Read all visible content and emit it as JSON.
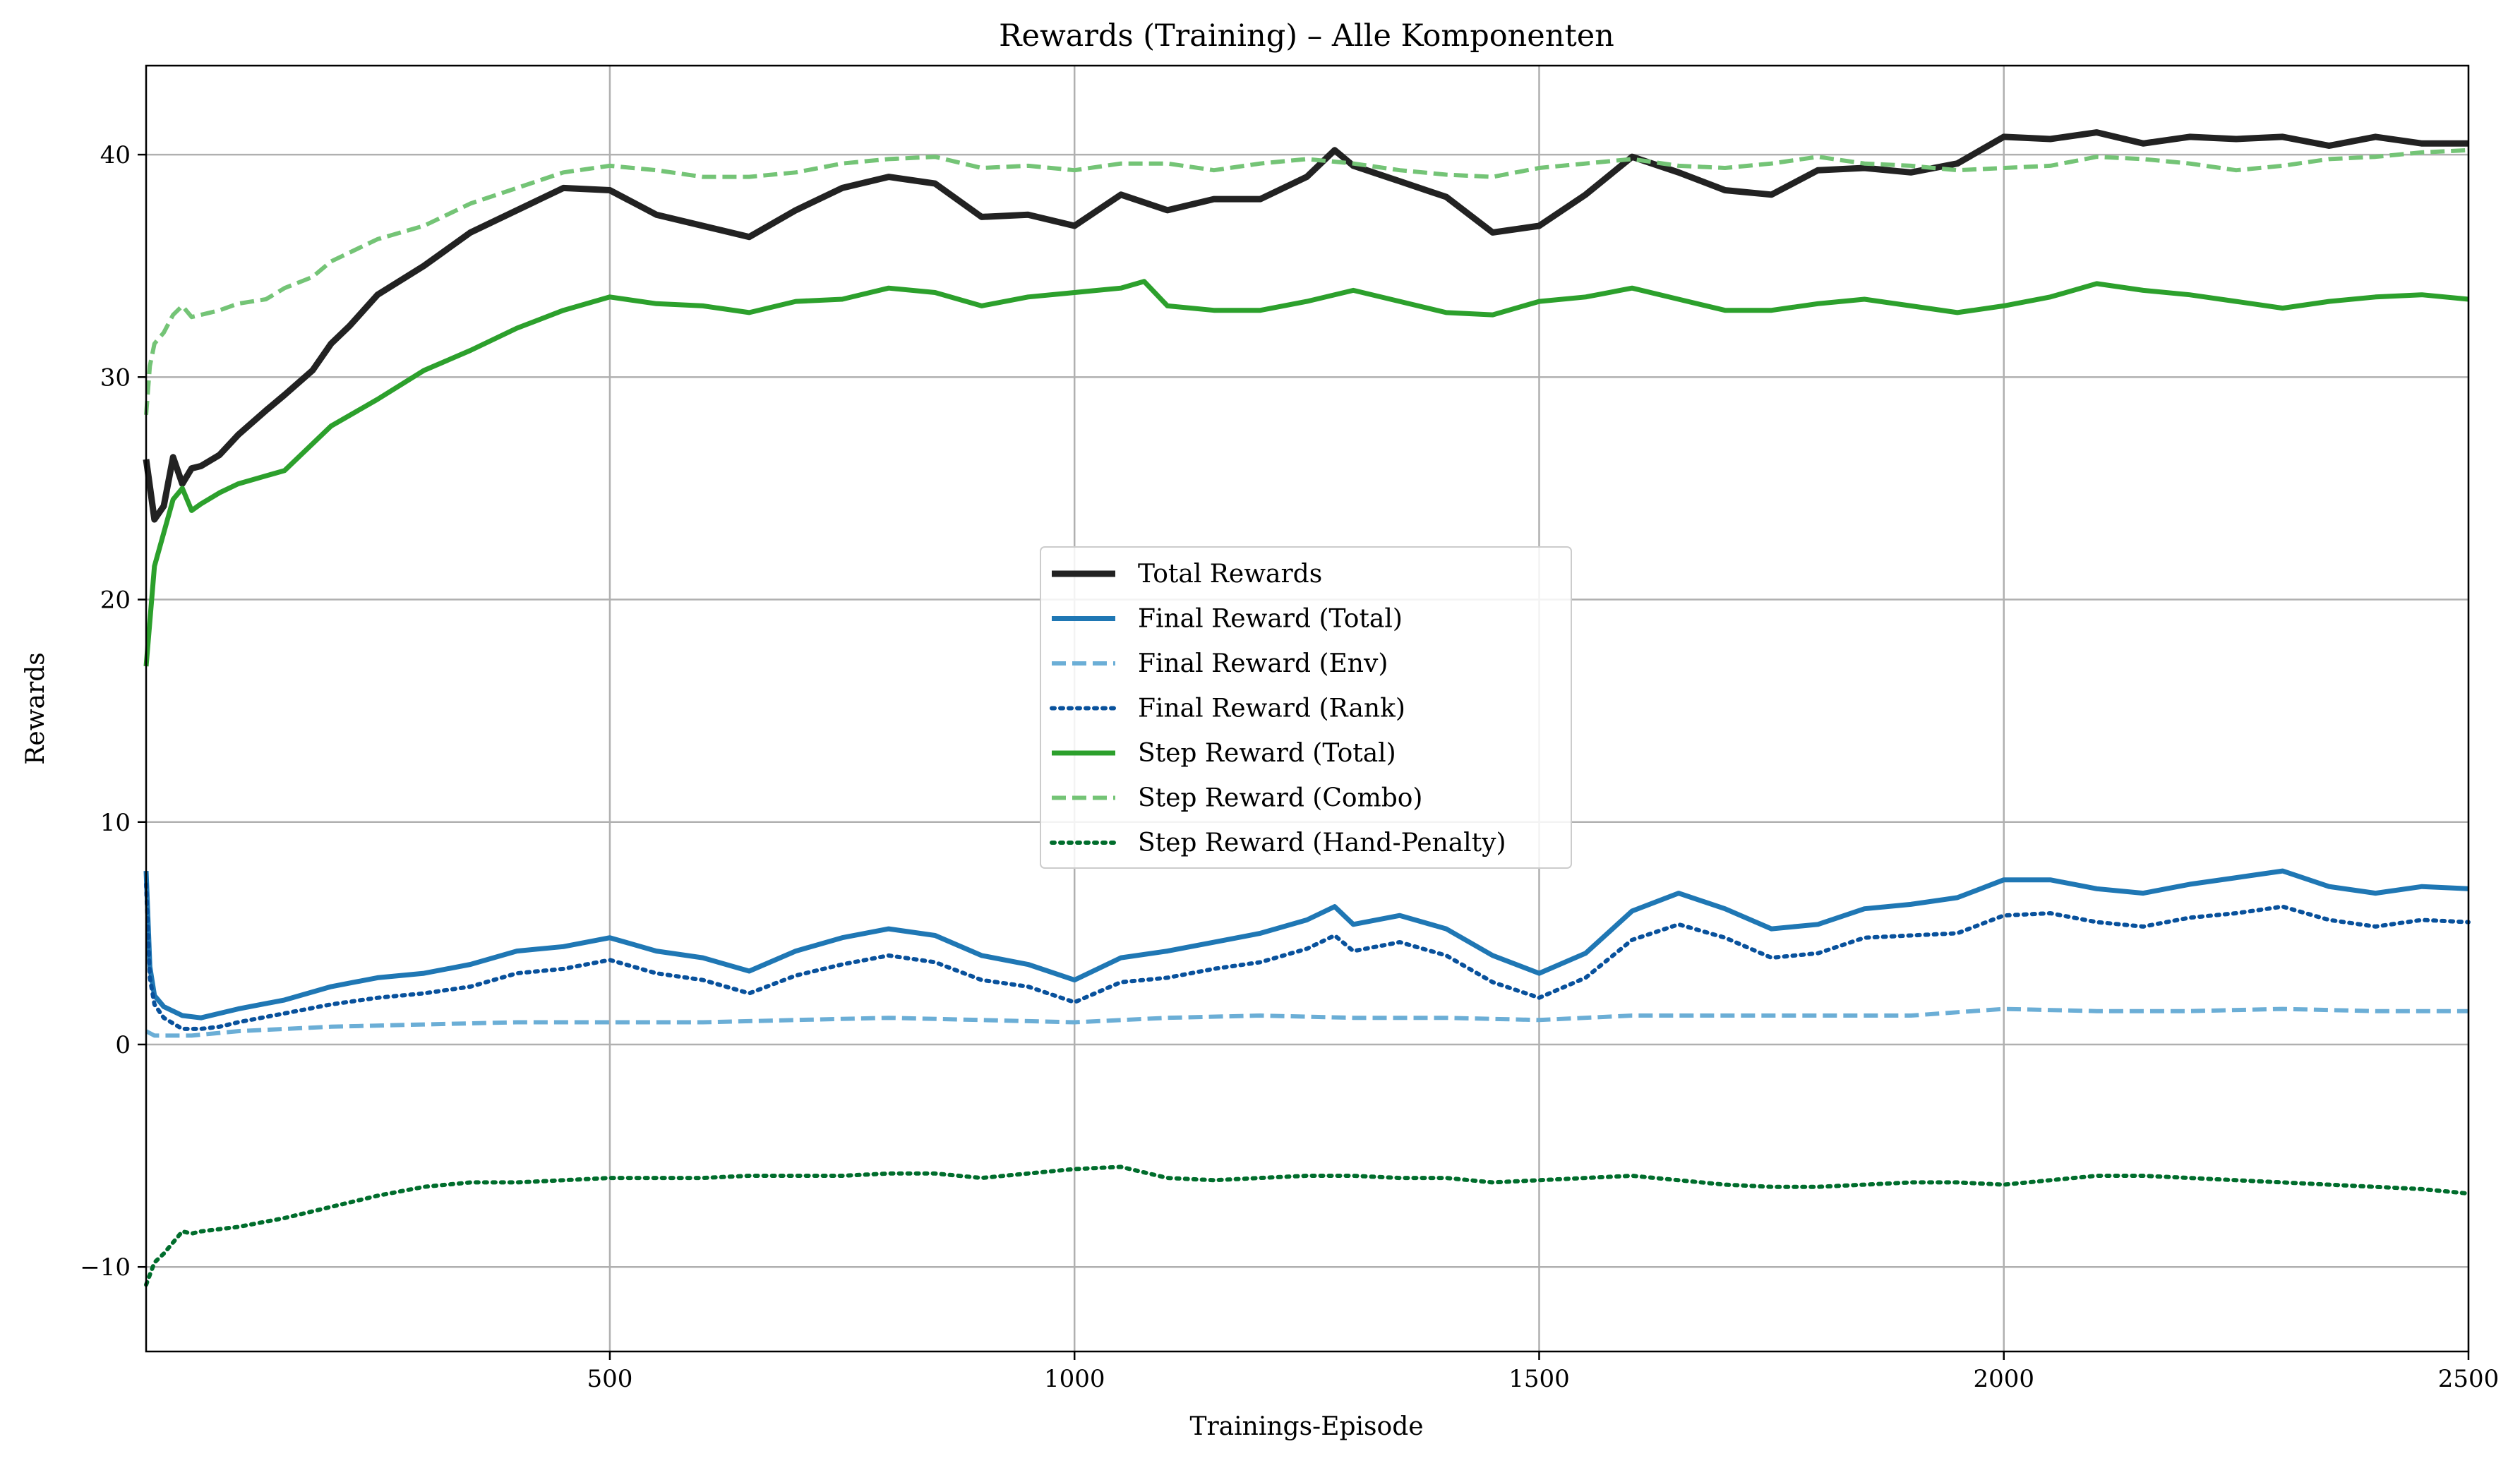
{
  "chart_data": {
    "type": "line",
    "title": "Rewards (Training) – Alle Komponenten",
    "xlabel": "Trainings-Episode",
    "ylabel": "Rewards",
    "xlim": [
      1,
      2500
    ],
    "ylim": [
      -13.8,
      44
    ],
    "grid": true,
    "legend_position": "center",
    "x_ticks": [
      {
        "value": 500,
        "label": "500"
      },
      {
        "value": 1000,
        "label": "1000"
      },
      {
        "value": 1500,
        "label": "1500"
      },
      {
        "value": 2000,
        "label": "2000"
      },
      {
        "value": 2500,
        "label": "2500"
      }
    ],
    "y_ticks": [
      {
        "value": -10,
        "label": "−10"
      },
      {
        "value": 0,
        "label": "0"
      },
      {
        "value": 10,
        "label": "10"
      },
      {
        "value": 20,
        "label": "20"
      },
      {
        "value": 30,
        "label": "30"
      },
      {
        "value": 40,
        "label": "40"
      }
    ],
    "series": [
      {
        "name": "Total Rewards",
        "color": "#222222",
        "style": "solid",
        "x": [
          1,
          10,
          20,
          30,
          40,
          50,
          60,
          80,
          100,
          130,
          150,
          180,
          200,
          220,
          250,
          300,
          350,
          400,
          450,
          500,
          550,
          600,
          650,
          700,
          750,
          800,
          850,
          900,
          950,
          1000,
          1050,
          1100,
          1150,
          1200,
          1250,
          1280,
          1300,
          1350,
          1400,
          1450,
          1500,
          1550,
          1600,
          1650,
          1700,
          1750,
          1800,
          1850,
          1900,
          1950,
          2000,
          2050,
          2100,
          2150,
          2200,
          2250,
          2300,
          2350,
          2400,
          2450,
          2500
        ],
        "values": [
          26.3,
          23.6,
          24.2,
          26.4,
          25.2,
          25.9,
          26.0,
          26.5,
          27.4,
          28.5,
          29.2,
          30.3,
          31.5,
          32.3,
          33.7,
          35.0,
          36.5,
          37.5,
          38.5,
          38.4,
          37.3,
          36.8,
          36.3,
          37.5,
          38.5,
          39.0,
          38.7,
          37.2,
          37.3,
          36.8,
          38.2,
          37.5,
          38.0,
          38.0,
          39.0,
          40.2,
          39.5,
          38.8,
          38.1,
          36.5,
          36.8,
          38.2,
          39.9,
          39.2,
          38.4,
          38.2,
          39.3,
          39.4,
          39.2,
          39.6,
          40.8,
          40.7,
          41.0,
          40.5,
          40.8,
          40.7,
          40.8,
          40.4,
          40.8,
          40.5,
          40.5
        ]
      },
      {
        "name": "Final Reward (Total)",
        "color": "#1f77b4",
        "style": "solid",
        "x": [
          1,
          5,
          10,
          20,
          40,
          60,
          80,
          100,
          150,
          200,
          250,
          300,
          350,
          400,
          450,
          500,
          550,
          600,
          650,
          700,
          750,
          800,
          850,
          900,
          950,
          1000,
          1050,
          1100,
          1150,
          1200,
          1250,
          1280,
          1300,
          1350,
          1400,
          1450,
          1500,
          1550,
          1600,
          1650,
          1700,
          1750,
          1800,
          1850,
          1900,
          1950,
          2000,
          2050,
          2100,
          2150,
          2200,
          2250,
          2300,
          2350,
          2400,
          2450,
          2500
        ],
        "values": [
          7.8,
          3.5,
          2.2,
          1.7,
          1.3,
          1.2,
          1.4,
          1.6,
          2.0,
          2.6,
          3.0,
          3.2,
          3.6,
          4.2,
          4.4,
          4.8,
          4.2,
          3.9,
          3.3,
          4.2,
          4.8,
          5.2,
          4.9,
          4.0,
          3.6,
          2.9,
          3.9,
          4.2,
          4.6,
          5.0,
          5.6,
          6.2,
          5.4,
          5.8,
          5.2,
          4.0,
          3.2,
          4.1,
          6.0,
          6.8,
          6.1,
          5.2,
          5.4,
          6.1,
          6.3,
          6.6,
          7.4,
          7.4,
          7.0,
          6.8,
          7.2,
          7.5,
          7.8,
          7.1,
          6.8,
          7.1,
          7.0
        ]
      },
      {
        "name": "Final Reward (Env)",
        "color": "#6baed6",
        "style": "dashed",
        "x": [
          1,
          10,
          50,
          100,
          200,
          300,
          400,
          500,
          600,
          700,
          800,
          900,
          1000,
          1100,
          1200,
          1300,
          1400,
          1500,
          1600,
          1700,
          1800,
          1900,
          2000,
          2100,
          2200,
          2300,
          2400,
          2500
        ],
        "values": [
          0.6,
          0.4,
          0.4,
          0.6,
          0.8,
          0.9,
          1.0,
          1.0,
          1.0,
          1.1,
          1.2,
          1.1,
          1.0,
          1.2,
          1.3,
          1.2,
          1.2,
          1.1,
          1.3,
          1.3,
          1.3,
          1.3,
          1.6,
          1.5,
          1.5,
          1.6,
          1.5,
          1.5
        ]
      },
      {
        "name": "Final Reward (Rank)",
        "color": "#08519c",
        "style": "dotted",
        "x": [
          1,
          5,
          10,
          20,
          40,
          60,
          80,
          100,
          150,
          200,
          250,
          300,
          350,
          400,
          450,
          500,
          550,
          600,
          650,
          700,
          750,
          800,
          850,
          900,
          950,
          1000,
          1050,
          1100,
          1150,
          1200,
          1250,
          1280,
          1300,
          1350,
          1400,
          1450,
          1500,
          1550,
          1600,
          1650,
          1700,
          1750,
          1800,
          1850,
          1900,
          1950,
          2000,
          2050,
          2100,
          2150,
          2200,
          2250,
          2300,
          2350,
          2400,
          2450,
          2500
        ],
        "values": [
          7.2,
          3.0,
          1.8,
          1.2,
          0.7,
          0.7,
          0.8,
          1.0,
          1.4,
          1.8,
          2.1,
          2.3,
          2.6,
          3.2,
          3.4,
          3.8,
          3.2,
          2.9,
          2.3,
          3.1,
          3.6,
          4.0,
          3.7,
          2.9,
          2.6,
          1.9,
          2.8,
          3.0,
          3.4,
          3.7,
          4.3,
          4.9,
          4.2,
          4.6,
          4.0,
          2.8,
          2.1,
          3.0,
          4.7,
          5.4,
          4.8,
          3.9,
          4.1,
          4.8,
          4.9,
          5.0,
          5.8,
          5.9,
          5.5,
          5.3,
          5.7,
          5.9,
          6.2,
          5.6,
          5.3,
          5.6,
          5.5
        ]
      },
      {
        "name": "Step Reward (Total)",
        "color": "#2ca02c",
        "style": "solid",
        "x": [
          1,
          10,
          20,
          30,
          40,
          50,
          60,
          80,
          100,
          150,
          200,
          250,
          300,
          350,
          400,
          450,
          500,
          550,
          600,
          650,
          700,
          750,
          800,
          850,
          900,
          950,
          1000,
          1050,
          1075,
          1100,
          1150,
          1200,
          1250,
          1300,
          1350,
          1400,
          1450,
          1500,
          1550,
          1600,
          1650,
          1700,
          1750,
          1800,
          1850,
          1900,
          1950,
          2000,
          2050,
          2100,
          2150,
          2200,
          2250,
          2300,
          2350,
          2400,
          2450,
          2500
        ],
        "values": [
          17.0,
          21.5,
          23.0,
          24.5,
          25.0,
          24.0,
          24.3,
          24.8,
          25.2,
          25.8,
          27.8,
          29.0,
          30.3,
          31.2,
          32.2,
          33.0,
          33.6,
          33.3,
          33.2,
          32.9,
          33.4,
          33.5,
          34.0,
          33.8,
          33.2,
          33.6,
          33.8,
          34.0,
          34.3,
          33.2,
          33.0,
          33.0,
          33.4,
          33.9,
          33.4,
          32.9,
          32.8,
          33.4,
          33.6,
          34.0,
          33.5,
          33.0,
          33.0,
          33.3,
          33.5,
          33.2,
          32.9,
          33.2,
          33.6,
          34.2,
          33.9,
          33.7,
          33.4,
          33.1,
          33.4,
          33.6,
          33.7,
          33.5
        ]
      },
      {
        "name": "Step Reward (Combo)",
        "color": "#74c476",
        "style": "dashed",
        "x": [
          1,
          5,
          10,
          20,
          30,
          40,
          50,
          60,
          80,
          100,
          130,
          150,
          180,
          200,
          250,
          300,
          350,
          400,
          450,
          500,
          550,
          600,
          650,
          700,
          750,
          800,
          850,
          900,
          950,
          1000,
          1050,
          1100,
          1150,
          1200,
          1250,
          1300,
          1350,
          1400,
          1450,
          1500,
          1550,
          1600,
          1650,
          1700,
          1750,
          1800,
          1850,
          1900,
          1950,
          2000,
          2050,
          2100,
          2150,
          2200,
          2250,
          2300,
          2350,
          2400,
          2450,
          2500
        ],
        "values": [
          28.3,
          30.5,
          31.5,
          32.0,
          32.8,
          33.2,
          32.7,
          32.8,
          33.0,
          33.3,
          33.5,
          34.0,
          34.5,
          35.2,
          36.2,
          36.8,
          37.8,
          38.5,
          39.2,
          39.5,
          39.3,
          39.0,
          39.0,
          39.2,
          39.6,
          39.8,
          39.9,
          39.4,
          39.5,
          39.3,
          39.6,
          39.6,
          39.3,
          39.6,
          39.8,
          39.6,
          39.3,
          39.1,
          39.0,
          39.4,
          39.6,
          39.8,
          39.5,
          39.4,
          39.6,
          39.9,
          39.6,
          39.5,
          39.3,
          39.4,
          39.5,
          39.9,
          39.8,
          39.6,
          39.3,
          39.5,
          39.8,
          39.9,
          40.1,
          40.2
        ]
      },
      {
        "name": "Step Reward (Hand-Penalty)",
        "color": "#006d2c",
        "style": "dotted",
        "x": [
          1,
          10,
          20,
          30,
          40,
          50,
          60,
          80,
          100,
          150,
          200,
          250,
          300,
          350,
          400,
          450,
          500,
          550,
          600,
          650,
          700,
          750,
          800,
          850,
          900,
          950,
          1000,
          1050,
          1100,
          1150,
          1200,
          1250,
          1300,
          1350,
          1400,
          1450,
          1500,
          1550,
          1600,
          1650,
          1700,
          1750,
          1800,
          1850,
          1900,
          1950,
          2000,
          2050,
          2100,
          2150,
          2200,
          2250,
          2300,
          2350,
          2400,
          2450,
          2500
        ],
        "values": [
          -10.8,
          -9.8,
          -9.4,
          -8.9,
          -8.4,
          -8.5,
          -8.4,
          -8.3,
          -8.2,
          -7.8,
          -7.3,
          -6.8,
          -6.4,
          -6.2,
          -6.2,
          -6.1,
          -6.0,
          -6.0,
          -6.0,
          -5.9,
          -5.9,
          -5.9,
          -5.8,
          -5.8,
          -6.0,
          -5.8,
          -5.6,
          -5.5,
          -6.0,
          -6.1,
          -6.0,
          -5.9,
          -5.9,
          -6.0,
          -6.0,
          -6.2,
          -6.1,
          -6.0,
          -5.9,
          -6.1,
          -6.3,
          -6.4,
          -6.4,
          -6.3,
          -6.2,
          -6.2,
          -6.3,
          -6.1,
          -5.9,
          -5.9,
          -6.0,
          -6.1,
          -6.2,
          -6.3,
          -6.4,
          -6.5,
          -6.7
        ]
      }
    ]
  }
}
